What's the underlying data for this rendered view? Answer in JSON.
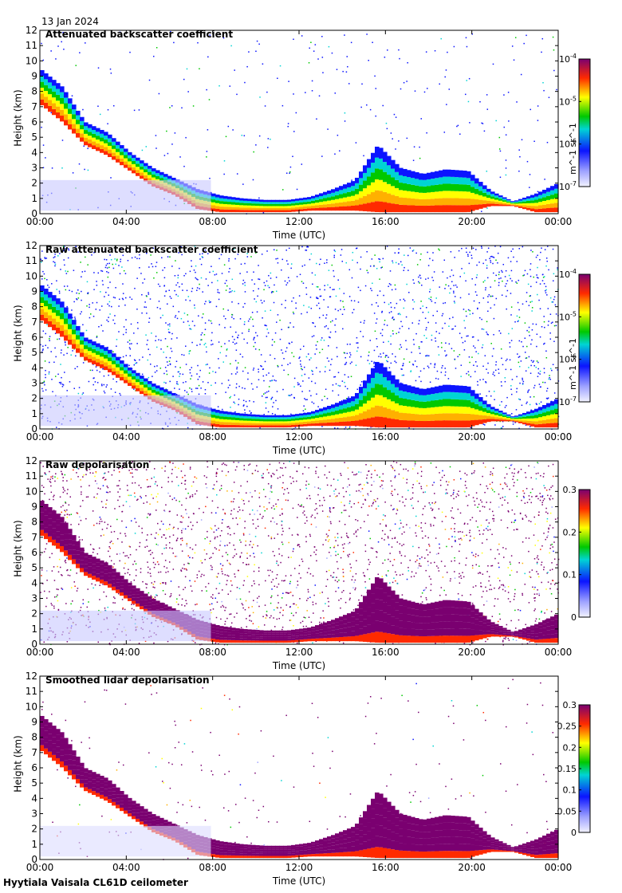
{
  "date_label": "13 Jan 2024",
  "footer": "Hyytiala Vaisala CL61D ceilometer",
  "chart_data": [
    {
      "type": "heatmap",
      "title": "Attenuated backscatter coefficient",
      "xlabel": "Time (UTC)",
      "ylabel": "Height (km)",
      "xticks": [
        "00:00",
        "04:00",
        "08:00",
        "12:00",
        "16:00",
        "20:00",
        "00:00"
      ],
      "xlim_hours": [
        0,
        24
      ],
      "ylim_km": [
        0,
        12
      ],
      "yticks": [
        0,
        1,
        2,
        3,
        4,
        5,
        6,
        7,
        8,
        9,
        10,
        11,
        12
      ],
      "colorbar": {
        "scale": "log",
        "min": 1e-07,
        "max": 0.0001,
        "ticks": [
          "10^-4",
          "10^-5",
          "10^-6",
          "10^-7"
        ],
        "unit": "m^-1 sr^-1"
      },
      "cloud_top_km": [
        9.5,
        8.3,
        6.0,
        5.3,
        4.0,
        3.0,
        2.3,
        1.6,
        1.2,
        1.0,
        0.9,
        0.9,
        1.1,
        1.6,
        2.2,
        4.5,
        3.0,
        2.6,
        2.9,
        2.8,
        1.5,
        0.8,
        1.3,
        2.0
      ],
      "cloud_base_km": [
        7.2,
        6.0,
        4.5,
        3.8,
        2.8,
        1.8,
        1.2,
        0.3,
        0.1,
        0.1,
        0.1,
        0.1,
        0.2,
        0.2,
        0.2,
        0.1,
        0.1,
        0.1,
        0.1,
        0.1,
        0.5,
        0.5,
        0.1,
        0.1
      ],
      "noise_level": 0.1
    },
    {
      "type": "heatmap",
      "title": "Raw attenuated backscatter coefficient",
      "xlabel": "Time (UTC)",
      "ylabel": "Height (km)",
      "xticks": [
        "00:00",
        "04:00",
        "08:00",
        "12:00",
        "16:00",
        "20:00",
        "00:00"
      ],
      "xlim_hours": [
        0,
        24
      ],
      "ylim_km": [
        0,
        12
      ],
      "yticks": [
        0,
        1,
        2,
        3,
        4,
        5,
        6,
        7,
        8,
        9,
        10,
        11,
        12
      ],
      "colorbar": {
        "scale": "log",
        "min": 1e-07,
        "max": 0.0001,
        "ticks": [
          "10^-4",
          "10^-5",
          "10^-6",
          "10^-7"
        ],
        "unit": "m^-1 sr^-1"
      },
      "cloud_top_km": [
        9.5,
        8.3,
        6.0,
        5.3,
        4.0,
        3.0,
        2.3,
        1.6,
        1.2,
        1.0,
        0.9,
        0.9,
        1.1,
        1.6,
        2.2,
        4.5,
        3.0,
        2.6,
        2.9,
        2.8,
        1.5,
        0.8,
        1.3,
        2.0
      ],
      "cloud_base_km": [
        7.2,
        6.0,
        4.5,
        3.8,
        2.8,
        1.8,
        1.2,
        0.3,
        0.1,
        0.1,
        0.1,
        0.1,
        0.2,
        0.2,
        0.2,
        0.1,
        0.1,
        0.1,
        0.1,
        0.1,
        0.5,
        0.5,
        0.1,
        0.1
      ],
      "noise_level": 0.85
    },
    {
      "type": "heatmap",
      "title": "Raw depolarisation",
      "xlabel": "Time (UTC)",
      "ylabel": "Height (km)",
      "xticks": [
        "00:00",
        "04:00",
        "08:00",
        "12:00",
        "16:00",
        "20:00",
        "00:00"
      ],
      "xlim_hours": [
        0,
        24
      ],
      "ylim_km": [
        0,
        12
      ],
      "yticks": [
        0,
        1,
        2,
        3,
        4,
        5,
        6,
        7,
        8,
        9,
        10,
        11,
        12
      ],
      "colorbar": {
        "scale": "linear",
        "min": 0,
        "max": 0.3,
        "ticks": [
          "0.3",
          "0.2",
          "0.1",
          "0"
        ],
        "unit": ""
      },
      "cloud_top_km": [
        9.5,
        8.3,
        6.0,
        5.3,
        4.0,
        3.0,
        2.3,
        1.6,
        1.2,
        1.0,
        0.9,
        0.9,
        1.1,
        1.6,
        2.2,
        4.5,
        3.0,
        2.6,
        2.9,
        2.8,
        1.5,
        0.8,
        1.3,
        2.0
      ],
      "cloud_base_km": [
        7.2,
        6.0,
        4.5,
        3.8,
        2.8,
        1.8,
        1.2,
        0.3,
        0.1,
        0.1,
        0.1,
        0.1,
        0.2,
        0.2,
        0.2,
        0.1,
        0.1,
        0.1,
        0.1,
        0.1,
        0.5,
        0.5,
        0.1,
        0.1
      ],
      "noise_level": 0.95
    },
    {
      "type": "heatmap",
      "title": "Smoothed lidar depolarisation",
      "xlabel": "Time (UTC)",
      "ylabel": "Height (km)",
      "xticks": [
        "00:00",
        "04:00",
        "08:00",
        "12:00",
        "16:00",
        "20:00",
        "00:00"
      ],
      "xlim_hours": [
        0,
        24
      ],
      "ylim_km": [
        0,
        12
      ],
      "yticks": [
        0,
        1,
        2,
        3,
        4,
        5,
        6,
        7,
        8,
        9,
        10,
        11,
        12
      ],
      "colorbar": {
        "scale": "linear",
        "min": 0,
        "max": 0.3,
        "ticks": [
          "0.3",
          "0.25",
          "0.2",
          "0.15",
          "0.1",
          "0.05",
          "0"
        ],
        "unit": ""
      },
      "cloud_top_km": [
        9.5,
        8.3,
        6.0,
        5.3,
        4.0,
        3.0,
        2.3,
        1.6,
        1.2,
        1.0,
        0.9,
        0.9,
        1.1,
        1.6,
        2.2,
        4.5,
        3.0,
        2.6,
        2.9,
        2.8,
        1.5,
        0.8,
        1.3,
        2.0
      ],
      "cloud_base_km": [
        7.2,
        6.0,
        4.5,
        3.8,
        2.8,
        1.8,
        1.2,
        0.3,
        0.1,
        0.1,
        0.1,
        0.1,
        0.2,
        0.2,
        0.2,
        0.1,
        0.1,
        0.1,
        0.1,
        0.1,
        0.5,
        0.5,
        0.1,
        0.1
      ],
      "noise_level": 0.05
    }
  ]
}
